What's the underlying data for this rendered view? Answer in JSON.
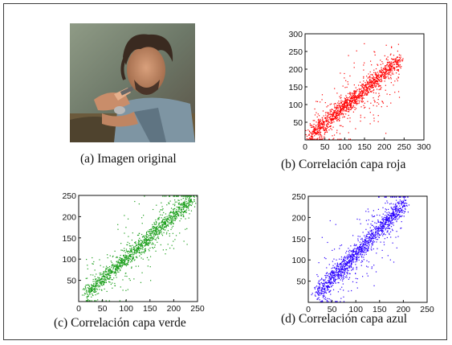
{
  "captions": {
    "a": "(a) Imagen original",
    "b": "(b) Correlación capa roja",
    "c": "(c) Correlación capa verde",
    "d": "(d) Correlación capa azul"
  },
  "chart_data": [
    {
      "type": "scatter",
      "title": "",
      "caption": "(b) Correlación capa roja",
      "xlabel": "",
      "ylabel": "",
      "xlim": [
        0,
        300
      ],
      "ylim": [
        0,
        300
      ],
      "xticks": [
        0,
        50,
        100,
        150,
        200,
        250,
        300
      ],
      "yticks": [
        50,
        100,
        150,
        200,
        250,
        300
      ],
      "color": "#ff0000",
      "trend": {
        "x": [
          10,
          250
        ],
        "y": [
          10,
          235
        ]
      },
      "density_range": [
        12,
        240
      ],
      "spread": 11,
      "outlier_fraction": 0.22,
      "n_points": 1400
    },
    {
      "type": "scatter",
      "title": "",
      "caption": "(c) Correlación capa verde",
      "xlabel": "",
      "ylabel": "",
      "xlim": [
        0,
        250
      ],
      "ylim": [
        0,
        250
      ],
      "xticks": [
        0,
        50,
        100,
        150,
        200,
        250
      ],
      "yticks": [
        50,
        100,
        150,
        200,
        250
      ],
      "color": "#1a9e1a",
      "trend": {
        "x": [
          10,
          240
        ],
        "y": [
          12,
          242
        ]
      },
      "density_range": [
        15,
        240
      ],
      "spread": 9,
      "outlier_fraction": 0.24,
      "n_points": 1400
    },
    {
      "type": "scatter",
      "title": "",
      "caption": "(d) Correlación capa azul",
      "xlabel": "",
      "ylabel": "",
      "xlim": [
        0,
        250
      ],
      "ylim": [
        0,
        250
      ],
      "xticks": [
        0,
        50,
        100,
        150,
        200,
        250
      ],
      "yticks": [
        50,
        100,
        150,
        200,
        250
      ],
      "color": "#2a00ff",
      "trend": {
        "x": [
          15,
          210
        ],
        "y": [
          15,
          240
        ]
      },
      "density_range": [
        18,
        205
      ],
      "spread": 10,
      "outlier_fraction": 0.22,
      "n_points": 1400
    }
  ]
}
